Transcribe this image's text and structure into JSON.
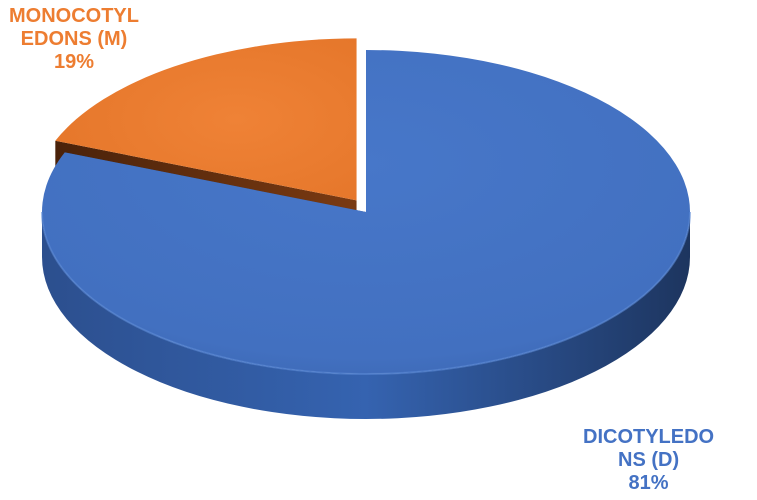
{
  "chart_data": {
    "type": "pie",
    "style": "3d-exploded",
    "title": "",
    "categories": [
      "DICOTYLEDONS (D)",
      "MONOCOTYLEDONS (M)"
    ],
    "values": [
      81,
      19
    ],
    "unit": "%",
    "colors": [
      "#4472C4",
      "#ED7D31"
    ],
    "labels": [
      {
        "lines": [
          "DICOTYLEDO",
          "NS (D)",
          "81%"
        ],
        "color": "#4472C4"
      },
      {
        "lines": [
          "MONOCOTYL",
          "EDONS (M)",
          "19%"
        ],
        "color": "#ED7D31"
      }
    ],
    "legend": "none",
    "grid": false
  }
}
